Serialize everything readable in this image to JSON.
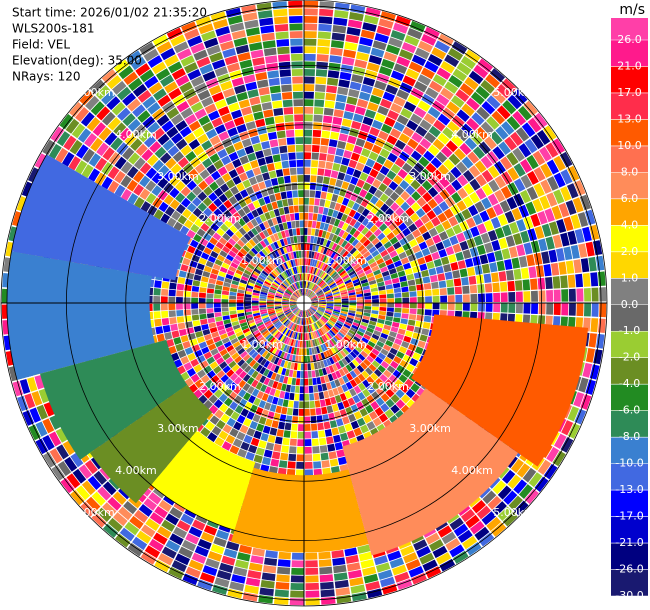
{
  "chart_data": {
    "type": "ppi",
    "info": [
      "Start time: 2026/01/02 21:35:20",
      "WLS200s-181",
      "Field: VEL",
      "Elevation(deg): 35.00",
      "NRays: 120"
    ],
    "rlim": [
      0,
      5.1
    ],
    "rticks": [
      {
        "value": 1,
        "label": "1.00km"
      },
      {
        "value": 2,
        "label": "2.00km"
      },
      {
        "value": 3,
        "label": "3.00km"
      },
      {
        "value": 4,
        "label": "4.00km"
      },
      {
        "value": 5,
        "label": "5.00km"
      }
    ],
    "sectors": [
      {
        "az": [
          280,
          300
        ],
        "r": [
          2.2,
          5.0
        ],
        "value": -11
      },
      {
        "az": [
          255,
          280
        ],
        "r": [
          2.6,
          5.0
        ],
        "value": -9
      },
      {
        "az": [
          235,
          255
        ],
        "r": [
          2.4,
          4.6
        ],
        "value": -7
      },
      {
        "az": [
          220,
          235
        ],
        "r": [
          2.4,
          4.4
        ],
        "value": -3
      },
      {
        "az": [
          197,
          220
        ],
        "r": [
          2.8,
          4.0
        ],
        "value": 3
      },
      {
        "az": [
          165,
          197
        ],
        "r": [
          2.9,
          4.2
        ],
        "value": 5
      },
      {
        "az": [
          125,
          165
        ],
        "r": [
          2.5,
          4.4
        ],
        "value": 7
      },
      {
        "az": [
          95,
          125
        ],
        "r": [
          2.2,
          4.8
        ],
        "value": 11
      }
    ],
    "colorbar": {
      "unit": "m/s",
      "ticks": [
        {
          "value": 26,
          "label": "26.0"
        },
        {
          "value": 21,
          "label": "21.0"
        },
        {
          "value": 17,
          "label": "17.0"
        },
        {
          "value": 13,
          "label": "13.0"
        },
        {
          "value": 10,
          "label": "10.0"
        },
        {
          "value": 8,
          "label": "8.0"
        },
        {
          "value": 6,
          "label": "6.0"
        },
        {
          "value": 4,
          "label": "4.0"
        },
        {
          "value": 2,
          "label": "2.0"
        },
        {
          "value": 1,
          "label": "1.0"
        },
        {
          "value": 0,
          "label": "0.0"
        },
        {
          "value": -1,
          "label": "-1.0"
        },
        {
          "value": -2,
          "label": "-2.0"
        },
        {
          "value": -4,
          "label": "-4.0"
        },
        {
          "value": -6,
          "label": "-6.0"
        },
        {
          "value": -8,
          "label": "-8.0"
        },
        {
          "value": -10,
          "label": "-10.0"
        },
        {
          "value": -13,
          "label": "-13.0"
        },
        {
          "value": -17,
          "label": "-17.0"
        },
        {
          "value": -21,
          "label": "-21.0"
        },
        {
          "value": -26,
          "label": "-26.0"
        },
        {
          "value": -30,
          "label": "-30.0"
        }
      ],
      "colors": [
        "#ff3fa8",
        "#ff1a8c",
        "#ff0000",
        "#ff2d4b",
        "#ff5a00",
        "#ff7050",
        "#ff8c5a",
        "#ffa500",
        "#ffff00",
        "#ffd700",
        "#808080",
        "#696969",
        "#9acd32",
        "#6b8e23",
        "#228b22",
        "#2e8b57",
        "#3a80d0",
        "#4169e1",
        "#0000ff",
        "#0000cd",
        "#000080",
        "#191970"
      ]
    }
  }
}
